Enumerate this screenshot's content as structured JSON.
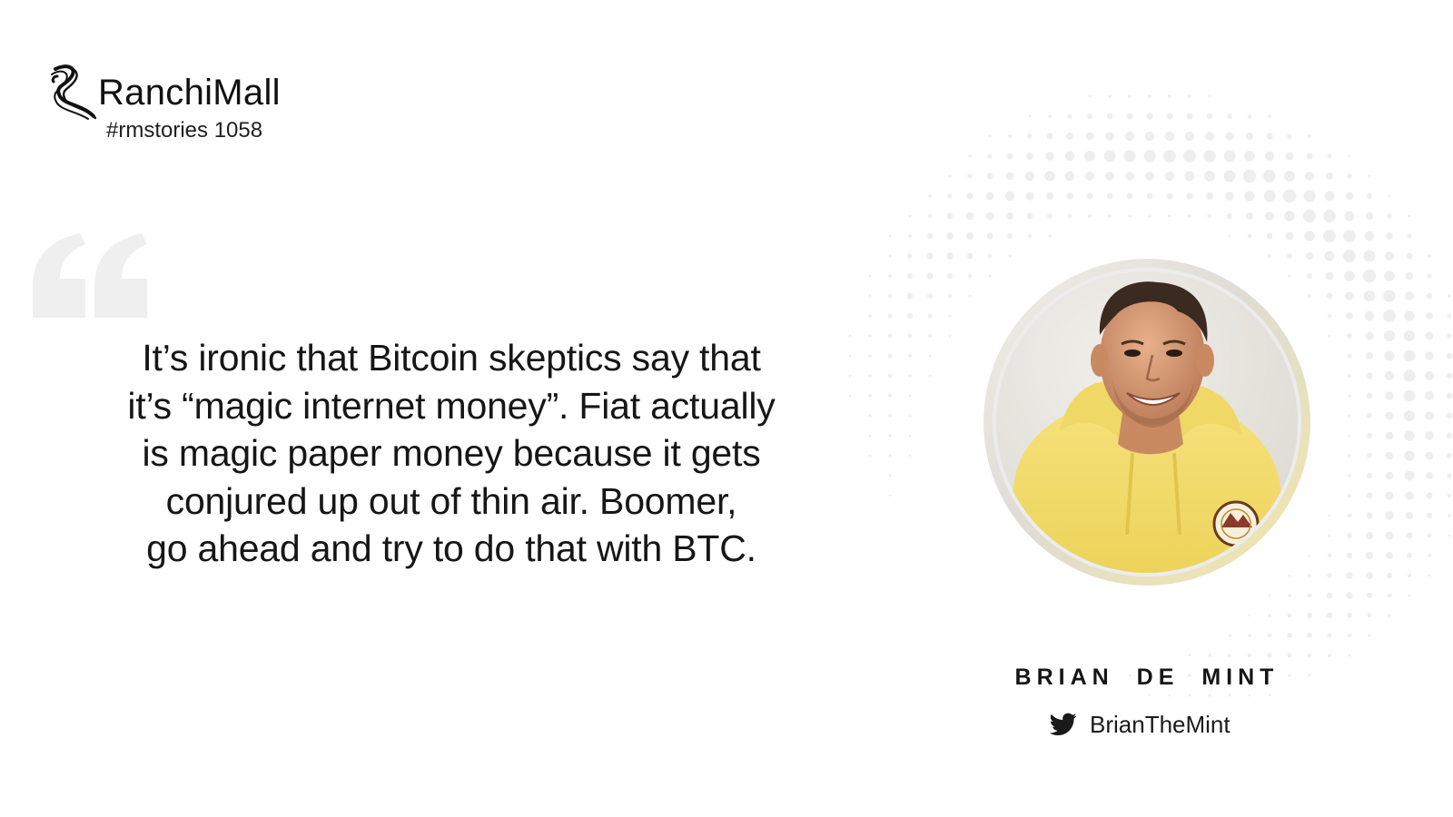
{
  "brand": {
    "name": "RanchiMall",
    "tag": "#rmstories 1058",
    "logo_icon": "ranchimall-swirl-logo-icon"
  },
  "quote": {
    "mark_icon": "open-quote-icon",
    "lines": [
      "It’s ironic that Bitcoin skeptics say that",
      "it’s “magic internet money”. Fiat actually",
      "is magic paper money because it gets",
      "conjured up out of thin air. Boomer,",
      "go ahead and try to do that with BTC."
    ]
  },
  "person": {
    "name": "BRIAN DE MINT",
    "handle": "BrianTheMint",
    "handle_icon": "twitter-bird-icon",
    "portrait": "portrait-photo"
  },
  "colors": {
    "text": "#161616",
    "quote_mark": "#efefef",
    "halftone": "#eeeeee",
    "hoodie": "#f4dc6a",
    "twitter_icon": "#1a1a1a"
  }
}
